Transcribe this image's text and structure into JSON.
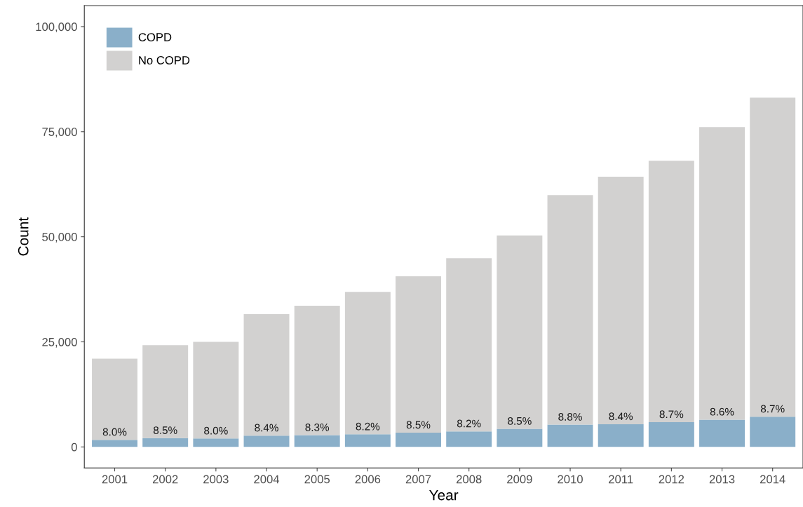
{
  "chart_data": {
    "type": "bar",
    "stacked": true,
    "xlabel": "Year",
    "ylabel": "Count",
    "categories": [
      "2001",
      "2002",
      "2003",
      "2004",
      "2005",
      "2006",
      "2007",
      "2008",
      "2009",
      "2010",
      "2011",
      "2012",
      "2013",
      "2014"
    ],
    "series": [
      {
        "name": "COPD",
        "color": "#8aafc9",
        "values": [
          1700,
          2100,
          2000,
          2700,
          2800,
          3000,
          3400,
          3700,
          4300,
          5300,
          5400,
          5900,
          6500,
          7200
        ]
      },
      {
        "name": "No COPD",
        "color": "#d2d1d0",
        "values": [
          19300,
          22100,
          23000,
          28900,
          30800,
          33900,
          37200,
          41200,
          46000,
          54600,
          58900,
          62200,
          69600,
          75900
        ]
      }
    ],
    "ylim": [
      -5000,
      105000
    ],
    "yticks": [
      {
        "value": 0,
        "label": "0"
      },
      {
        "value": 25000,
        "label": "25,000"
      },
      {
        "value": 50000,
        "label": "50,000"
      },
      {
        "value": 75000,
        "label": "75,000"
      },
      {
        "value": 100000,
        "label": "100,000"
      }
    ],
    "grid": false,
    "legend": "top left",
    "annotations": [
      {
        "text": "8.0%",
        "x": "2001",
        "y": 1700
      },
      {
        "text": "8.5%",
        "x": "2002",
        "y": 2100
      },
      {
        "text": "8.0%",
        "x": "2003",
        "y": 2000
      },
      {
        "text": "8.4%",
        "x": "2004",
        "y": 2700
      },
      {
        "text": "8.3%",
        "x": "2005",
        "y": 2800
      },
      {
        "text": "8.2%",
        "x": "2006",
        "y": 3000
      },
      {
        "text": "8.5%",
        "x": "2007",
        "y": 3400
      },
      {
        "text": "8.2%",
        "x": "2008",
        "y": 3700
      },
      {
        "text": "8.5%",
        "x": "2009",
        "y": 4300
      },
      {
        "text": "8.8%",
        "x": "2010",
        "y": 5300
      },
      {
        "text": "8.4%",
        "x": "2011",
        "y": 5400
      },
      {
        "text": "8.7%",
        "x": "2012",
        "y": 5900
      },
      {
        "text": "8.6%",
        "x": "2013",
        "y": 6500
      },
      {
        "text": "8.7%",
        "x": "2014",
        "y": 7200
      }
    ]
  }
}
